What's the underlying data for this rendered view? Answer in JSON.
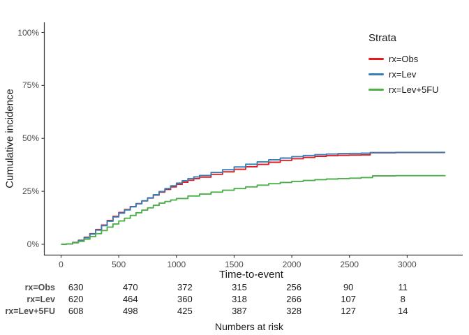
{
  "figure": {
    "background": "#ffffff",
    "axis_color": "#333333",
    "tick_text_color": "#4d4d4d"
  },
  "chart_data": {
    "type": "line",
    "subtype": "step-function-cumulative-incidence",
    "title": "",
    "xlabel": "Time-to-event",
    "ylabel": "Cumulative incidence",
    "xlim": [
      -160,
      3490
    ],
    "ylim": [
      0,
      100
    ],
    "grid": false,
    "x_ticks": [
      0,
      500,
      1000,
      1500,
      2000,
      2500,
      3000
    ],
    "y_tick_labels": [
      "0%",
      "25%",
      "50%",
      "75%",
      "100%"
    ],
    "y_tick_values": [
      0,
      25,
      50,
      75,
      100
    ],
    "legend": {
      "title": "Strata",
      "position": "top-right-inside",
      "entries": [
        "rx=Obs",
        "rx=Lev",
        "rx=Lev+5FU"
      ]
    },
    "series": [
      {
        "name": "rx=Obs",
        "color": "#E41A1C",
        "points": [
          [
            0,
            0
          ],
          [
            45,
            0.2
          ],
          [
            100,
            0.9
          ],
          [
            150,
            1.9
          ],
          [
            200,
            3.3
          ],
          [
            250,
            5.0
          ],
          [
            300,
            7.0
          ],
          [
            350,
            9.1
          ],
          [
            400,
            11.2
          ],
          [
            450,
            13.2
          ],
          [
            500,
            15.0
          ],
          [
            550,
            16.4
          ],
          [
            600,
            17.8
          ],
          [
            650,
            19.2
          ],
          [
            700,
            20.5
          ],
          [
            750,
            21.8
          ],
          [
            800,
            23.2
          ],
          [
            850,
            24.6
          ],
          [
            900,
            25.9
          ],
          [
            950,
            27.1
          ],
          [
            1000,
            28.3
          ],
          [
            1050,
            29.3
          ],
          [
            1100,
            30.2
          ],
          [
            1150,
            31.0
          ],
          [
            1200,
            31.7
          ],
          [
            1300,
            33.0
          ],
          [
            1400,
            34.2
          ],
          [
            1500,
            35.4
          ],
          [
            1600,
            36.6
          ],
          [
            1700,
            37.7
          ],
          [
            1800,
            38.7
          ],
          [
            1900,
            39.6
          ],
          [
            2000,
            40.4
          ],
          [
            2100,
            41.0
          ],
          [
            2200,
            41.5
          ],
          [
            2300,
            41.8
          ],
          [
            2400,
            42.0
          ],
          [
            2500,
            42.1
          ],
          [
            2600,
            42.2
          ],
          [
            2680,
            43.2
          ],
          [
            2900,
            43.3
          ],
          [
            3329,
            43.3
          ]
        ]
      },
      {
        "name": "rx=Lev",
        "color": "#377EB8",
        "points": [
          [
            0,
            0
          ],
          [
            45,
            0.2
          ],
          [
            100,
            0.8
          ],
          [
            150,
            1.8
          ],
          [
            200,
            3.1
          ],
          [
            250,
            4.8
          ],
          [
            300,
            6.7
          ],
          [
            350,
            8.8
          ],
          [
            400,
            10.9
          ],
          [
            450,
            12.9
          ],
          [
            500,
            14.7
          ],
          [
            550,
            16.2
          ],
          [
            600,
            17.7
          ],
          [
            650,
            19.1
          ],
          [
            700,
            20.5
          ],
          [
            750,
            21.9
          ],
          [
            800,
            23.4
          ],
          [
            850,
            24.9
          ],
          [
            900,
            26.3
          ],
          [
            950,
            27.6
          ],
          [
            1000,
            28.9
          ],
          [
            1050,
            30.0
          ],
          [
            1100,
            31.0
          ],
          [
            1150,
            31.8
          ],
          [
            1200,
            32.5
          ],
          [
            1300,
            33.9
          ],
          [
            1400,
            35.2
          ],
          [
            1500,
            36.5
          ],
          [
            1600,
            37.8
          ],
          [
            1700,
            38.9
          ],
          [
            1800,
            39.9
          ],
          [
            1900,
            40.7
          ],
          [
            2000,
            41.4
          ],
          [
            2100,
            41.9
          ],
          [
            2200,
            42.3
          ],
          [
            2300,
            42.6
          ],
          [
            2400,
            42.8
          ],
          [
            2500,
            42.9
          ],
          [
            2600,
            43.0
          ],
          [
            2680,
            43.3
          ],
          [
            2900,
            43.4
          ],
          [
            3329,
            43.4
          ]
        ]
      },
      {
        "name": "rx=Lev+5FU",
        "color": "#4DAF4A",
        "points": [
          [
            0,
            0
          ],
          [
            45,
            0.2
          ],
          [
            100,
            0.7
          ],
          [
            150,
            1.4
          ],
          [
            200,
            2.4
          ],
          [
            250,
            3.6
          ],
          [
            300,
            5.0
          ],
          [
            350,
            6.5
          ],
          [
            400,
            8.1
          ],
          [
            450,
            9.6
          ],
          [
            500,
            11.0
          ],
          [
            550,
            12.3
          ],
          [
            600,
            13.6
          ],
          [
            650,
            14.9
          ],
          [
            700,
            16.1
          ],
          [
            750,
            17.2
          ],
          [
            800,
            18.4
          ],
          [
            850,
            19.4
          ],
          [
            900,
            20.2
          ],
          [
            950,
            20.9
          ],
          [
            1000,
            21.6
          ],
          [
            1100,
            22.8
          ],
          [
            1200,
            23.7
          ],
          [
            1300,
            24.6
          ],
          [
            1400,
            25.5
          ],
          [
            1500,
            26.3
          ],
          [
            1600,
            27.1
          ],
          [
            1700,
            27.9
          ],
          [
            1800,
            28.6
          ],
          [
            1900,
            29.2
          ],
          [
            2000,
            29.7
          ],
          [
            2100,
            30.1
          ],
          [
            2200,
            30.5
          ],
          [
            2300,
            30.8
          ],
          [
            2400,
            31.0
          ],
          [
            2500,
            31.2
          ],
          [
            2600,
            31.5
          ],
          [
            2700,
            32.3
          ],
          [
            2900,
            32.4
          ],
          [
            3329,
            32.5
          ]
        ]
      }
    ],
    "risk_table": {
      "caption": "Numbers at risk",
      "times": [
        0,
        500,
        1000,
        1500,
        2000,
        2500,
        3000
      ],
      "rows": [
        {
          "name": "rx=Obs",
          "counts": [
            630,
            470,
            372,
            315,
            256,
            90,
            11
          ]
        },
        {
          "name": "rx=Lev",
          "counts": [
            620,
            464,
            360,
            318,
            266,
            107,
            8
          ]
        },
        {
          "name": "rx=Lev+5FU",
          "counts": [
            608,
            498,
            425,
            387,
            328,
            127,
            14
          ]
        }
      ]
    }
  }
}
